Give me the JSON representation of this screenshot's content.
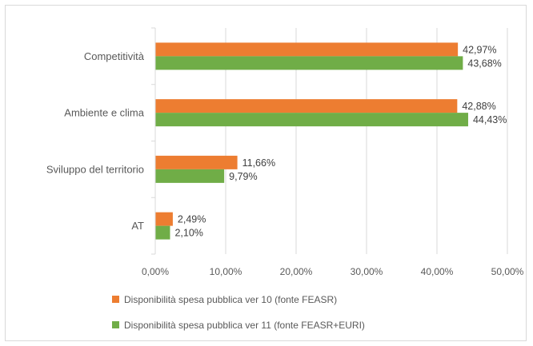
{
  "chart_data": {
    "type": "bar",
    "orientation": "horizontal",
    "categories": [
      "Competitività",
      "Ambiente e clima",
      "Sviluppo del territorio",
      "AT"
    ],
    "series": [
      {
        "name": "Disponibilità spesa pubblica ver 10 (fonte FEASR)",
        "color": "#ed7d31",
        "values": [
          42.97,
          42.88,
          11.66,
          2.49
        ],
        "labels": [
          "42,97%",
          "42,88%",
          "11,66%",
          "2,49%"
        ]
      },
      {
        "name": "Disponibilità spesa pubblica ver 11 (fonte FEASR+EURI)",
        "color": "#70ad47",
        "values": [
          43.68,
          44.43,
          9.79,
          2.1
        ],
        "labels": [
          "43,68%",
          "44,43%",
          "9,79%",
          "2,10%"
        ]
      }
    ],
    "xlim": [
      0,
      50
    ],
    "x_ticks": [
      "0,00%",
      "10,00%",
      "20,00%",
      "30,00%",
      "40,00%",
      "50,00%"
    ],
    "grid": true,
    "legend_position": "bottom",
    "title": "",
    "xlabel": "",
    "ylabel": ""
  }
}
